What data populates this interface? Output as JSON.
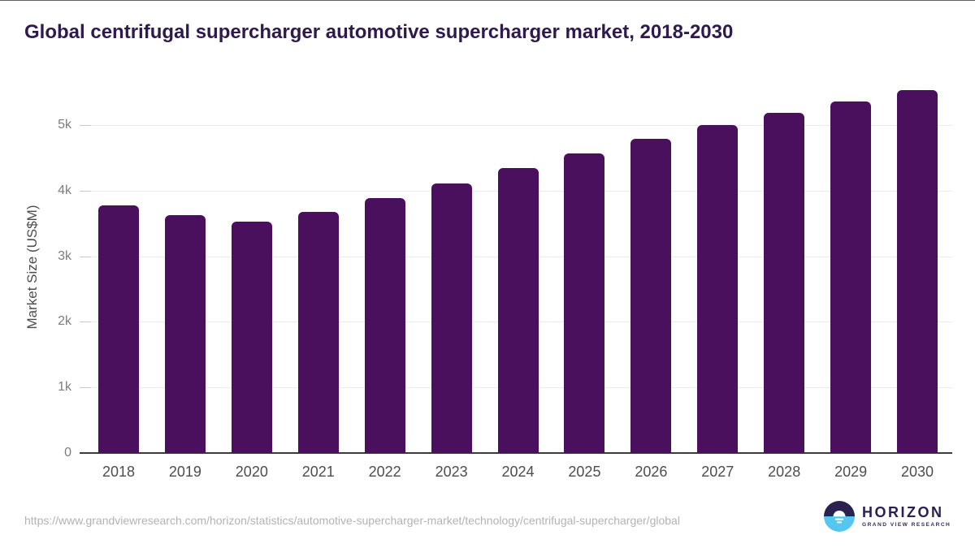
{
  "title": "Global centrifugal supercharger automotive supercharger market, 2018-2030",
  "chart_data": {
    "type": "bar",
    "title": "Global centrifugal supercharger automotive supercharger market, 2018-2030",
    "categories": [
      "2018",
      "2019",
      "2020",
      "2021",
      "2022",
      "2023",
      "2024",
      "2025",
      "2026",
      "2027",
      "2028",
      "2029",
      "2030"
    ],
    "values": [
      3770,
      3630,
      3530,
      3680,
      3880,
      4110,
      4350,
      4570,
      4790,
      5000,
      5190,
      5360,
      5530
    ],
    "unit": "US$M",
    "xlabel": "",
    "ylabel": "Market Size (US$M)",
    "ylim": [
      0,
      5670
    ],
    "yticks": [
      {
        "value": 0,
        "label": "0"
      },
      {
        "value": 1000,
        "label": "1k"
      },
      {
        "value": 2000,
        "label": "2k"
      },
      {
        "value": 3000,
        "label": "3k"
      },
      {
        "value": 4000,
        "label": "4k"
      },
      {
        "value": 5000,
        "label": "5k"
      }
    ],
    "grid": true,
    "legend": false,
    "bar_color": "#4a105e"
  },
  "footer": {
    "source_url": "https://www.grandviewresearch.com/horizon/statistics/automotive-supercharger-market/technology/centrifugal-supercharger/global",
    "logo": {
      "brand": "HORIZON",
      "subtitle": "GRAND VIEW RESEARCH"
    }
  },
  "colors": {
    "title_text": "#2e1a4d",
    "bar": "#4a105e",
    "axis_text": "#4d4d4d",
    "tick_text": "#7d7d7d",
    "gridline": "#ebebeb",
    "baseline": "#3c3c3c",
    "url_text": "#b3b3b3",
    "logo_dark": "#2b2150",
    "logo_blue": "#55c6f0"
  }
}
